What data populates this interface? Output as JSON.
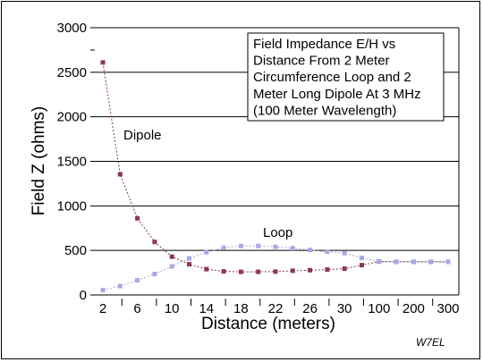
{
  "chart_data": {
    "type": "line",
    "title_lines": [
      "Field Impedance E/H vs",
      "Distance From 2 Meter",
      "Circumference Loop and 2",
      "Meter Long Dipole At 3 MHz",
      "(100 Meter Wavelength)"
    ],
    "xlabel": "Distance (meters)",
    "ylabel": "Field Z (ohms)",
    "ylim": [
      0,
      3000
    ],
    "yticks": [
      0,
      500,
      1000,
      1500,
      2000,
      2500,
      3000
    ],
    "x_tick_labels": [
      "2",
      "6",
      "10",
      "14",
      "18",
      "22",
      "26",
      "30",
      "100",
      "200",
      "300"
    ],
    "x": [
      2,
      4,
      6,
      8,
      10,
      12,
      14,
      16,
      18,
      20,
      22,
      24,
      26,
      28,
      30,
      40,
      100,
      150,
      200,
      250,
      300
    ],
    "series": [
      {
        "name": "Dipole",
        "color": "#8b3a4a",
        "values": [
          2610,
          1355,
          860,
          595,
          430,
          345,
          290,
          265,
          260,
          260,
          262,
          272,
          278,
          285,
          295,
          335,
          375,
          372,
          372,
          372,
          372
        ]
      },
      {
        "name": "Loop",
        "color": "#a8a8e8",
        "values": [
          55,
          100,
          165,
          235,
          320,
          410,
          480,
          530,
          550,
          550,
          540,
          525,
          505,
          485,
          470,
          415,
          375,
          372,
          372,
          372,
          372
        ]
      }
    ],
    "annotations": [
      "Dipole",
      "Loop"
    ],
    "credit": "W7EL",
    "grid": "horizontal"
  }
}
